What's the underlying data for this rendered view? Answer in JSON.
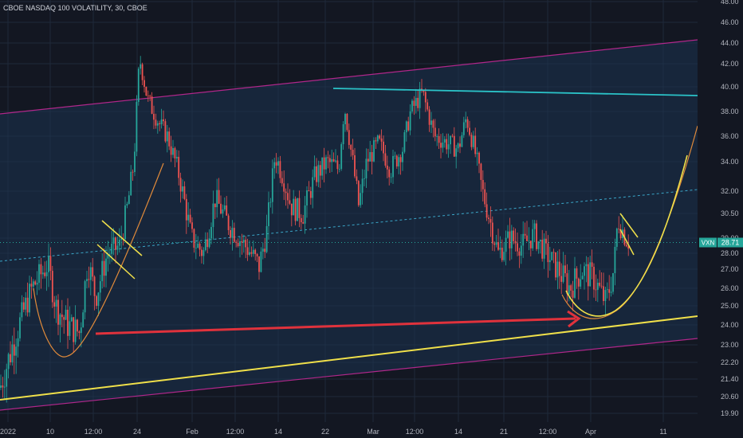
{
  "chart_data": {
    "type": "candlestick",
    "title": "CBOE NASDAQ 100 VOLATILITY, 30, CBOE",
    "price_label": "28.71",
    "symbol_tag": "VXN",
    "ylim": [
      19.6,
      48.0
    ],
    "y_ticks": [
      "48.00",
      "46.00",
      "44.00",
      "42.00",
      "40.00",
      "38.00",
      "36.00",
      "34.00",
      "32.00",
      "30.50",
      "29.00",
      "28.00",
      "27.00",
      "26.00",
      "25.00",
      "24.00",
      "23.00",
      "22.20",
      "21.40",
      "20.60",
      "19.90"
    ],
    "x_ticks": [
      "2022",
      "10",
      "12:00",
      "24",
      "Feb",
      "12:00",
      "14",
      "22",
      "Mar",
      "12:00",
      "14",
      "21",
      "12:00",
      "Apr",
      "11"
    ],
    "grid": true,
    "colors": {
      "background": "#131722",
      "channel_fill": "#1c3350",
      "channel_lines": "#b0278a",
      "candle_up": "#26a69a",
      "candle_down": "#ef5350",
      "trend_yellow": "#f0e04a",
      "resistance_cyan": "#2bc3c8",
      "midline": "#3aa6c8",
      "curve_orange": "#e08a3a",
      "arrow_red": "#e0323c"
    },
    "key_prices": {
      "resistance": 39.9,
      "last": 28.71
    },
    "series": [
      {
        "price_path": [
          [
            0,
            21.0
          ],
          [
            20,
            23.5
          ],
          [
            40,
            26.0
          ],
          [
            60,
            27.3
          ],
          [
            70,
            25.0
          ],
          [
            85,
            24.0
          ],
          [
            100,
            23.6
          ],
          [
            110,
            27.5
          ],
          [
            120,
            25.5
          ],
          [
            135,
            28.0
          ],
          [
            150,
            28.5
          ],
          [
            160,
            31.0
          ],
          [
            168,
            34.0
          ],
          [
            175,
            42.5
          ],
          [
            185,
            39.0
          ],
          [
            200,
            37.0
          ],
          [
            210,
            36.0
          ],
          [
            225,
            33.0
          ],
          [
            240,
            29.0
          ],
          [
            255,
            28.0
          ],
          [
            270,
            31.5
          ],
          [
            285,
            30.0
          ],
          [
            300,
            29.0
          ],
          [
            315,
            28.0
          ],
          [
            325,
            27.2
          ],
          [
            335,
            29.5
          ],
          [
            345,
            34.5
          ],
          [
            355,
            33.0
          ],
          [
            365,
            31.0
          ],
          [
            380,
            30.5
          ],
          [
            395,
            33.0
          ],
          [
            410,
            34.0
          ],
          [
            425,
            33.5
          ],
          [
            432,
            38.5
          ],
          [
            440,
            35.0
          ],
          [
            450,
            31.0
          ],
          [
            460,
            34.0
          ],
          [
            475,
            35.5
          ],
          [
            490,
            33.5
          ],
          [
            505,
            35.0
          ],
          [
            515,
            38.0
          ],
          [
            530,
            39.5
          ],
          [
            545,
            36.0
          ],
          [
            560,
            35.5
          ],
          [
            575,
            35.0
          ],
          [
            585,
            37.5
          ],
          [
            595,
            35.0
          ],
          [
            605,
            32.0
          ],
          [
            615,
            30.0
          ],
          [
            625,
            28.0
          ],
          [
            640,
            29.0
          ],
          [
            655,
            28.5
          ],
          [
            670,
            29.2
          ],
          [
            685,
            28.0
          ],
          [
            700,
            27.0
          ],
          [
            715,
            26.0
          ],
          [
            730,
            27.0
          ],
          [
            745,
            26.5
          ],
          [
            760,
            25.2
          ],
          [
            770,
            27.0
          ],
          [
            775,
            30.2
          ],
          [
            785,
            29.0
          ],
          [
            790,
            28.7
          ]
        ]
      }
    ]
  }
}
